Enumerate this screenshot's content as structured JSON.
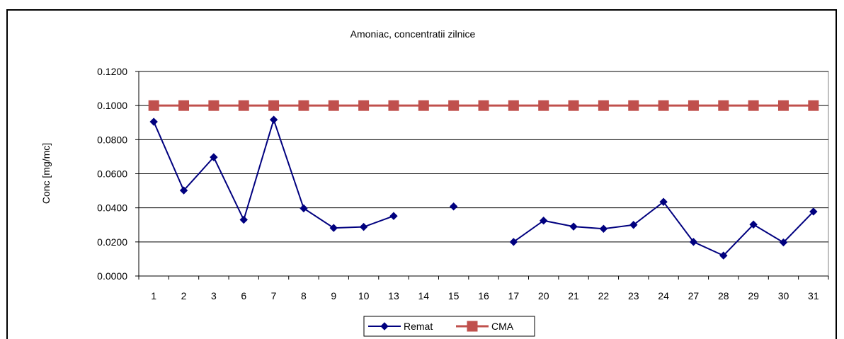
{
  "chart_data": {
    "type": "line",
    "title": "Amoniac, concentratii zilnice",
    "xlabel": "",
    "ylabel": "Conc [mg/mc]",
    "categories": [
      "1",
      "2",
      "3",
      "6",
      "7",
      "8",
      "9",
      "10",
      "13",
      "14",
      "15",
      "16",
      "17",
      "20",
      "21",
      "22",
      "23",
      "24",
      "27",
      "28",
      "29",
      "30",
      "31"
    ],
    "ylim": [
      0,
      0.12
    ],
    "yticks": [
      "0.0000",
      "0.0200",
      "0.0400",
      "0.0600",
      "0.0800",
      "0.1000",
      "0.1200"
    ],
    "ytick_values": [
      0,
      0.02,
      0.04,
      0.06,
      0.08,
      0.1,
      0.12
    ],
    "grid": true,
    "legend_position": "bottom",
    "series": [
      {
        "name": "Remat",
        "color": "#00007f",
        "marker": "diamond",
        "values": [
          0.0905,
          0.0502,
          0.0697,
          0.033,
          0.0917,
          0.0397,
          0.0282,
          0.0288,
          0.0352,
          null,
          0.0408,
          null,
          0.02,
          0.0325,
          0.029,
          0.0277,
          0.03,
          0.0435,
          0.02,
          0.012,
          0.0302,
          0.0197,
          0.0378
        ]
      },
      {
        "name": "CMA",
        "color": "#c0504d",
        "marker": "square",
        "values": [
          0.1,
          0.1,
          0.1,
          0.1,
          0.1,
          0.1,
          0.1,
          0.1,
          0.1,
          0.1,
          0.1,
          0.1,
          0.1,
          0.1,
          0.1,
          0.1,
          0.1,
          0.1,
          0.1,
          0.1,
          0.1,
          0.1,
          0.1
        ]
      }
    ]
  }
}
